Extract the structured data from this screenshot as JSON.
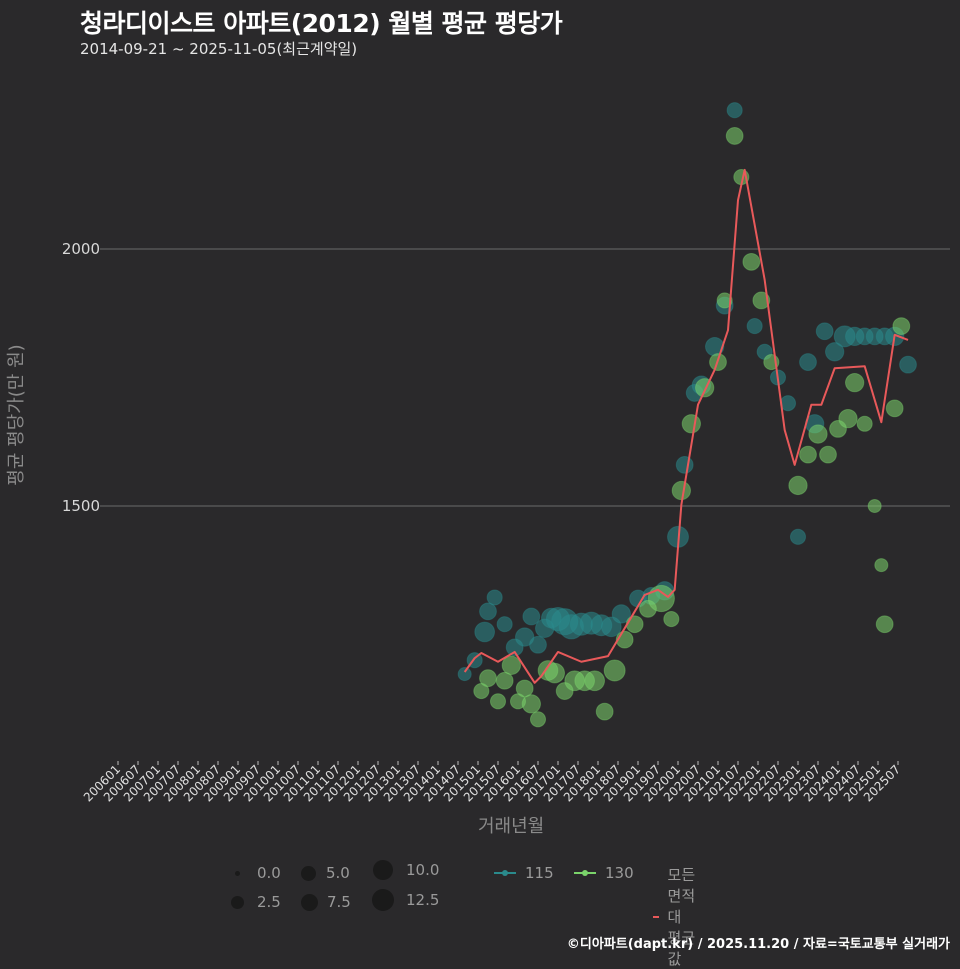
{
  "header": {
    "title": "청라디이스트 아파트(2012) 월별 평균 평당가",
    "subtitle": "2014-09-21 ~ 2025-11-05(최근계약일)"
  },
  "footer": {
    "credit": "©디아파트(dapt.kr) / 2025.11.20 / 자료=국토교통부 실거래가"
  },
  "colors": {
    "background": "#2a292b",
    "series_115": "#2a8a8c",
    "series_130": "#7bd46b",
    "average_line": "#e8595a",
    "gridline": "#6b6b6b"
  },
  "chart_data": {
    "type": "scatter",
    "title": "청라디이스트 아파트(2012) 월별 평균 평당가",
    "subtitle": "2014-09-21 ~ 2025-11-05(최근계약일)",
    "xlabel": "거래년월",
    "ylabel": "평균 평당가(만 원)",
    "y_ticks": [
      1500,
      2000
    ],
    "ylim": [
      1060,
      2330
    ],
    "grid": "horizontal major only",
    "x_ticks": [
      "200601",
      "200607",
      "200701",
      "200707",
      "200801",
      "200807",
      "200901",
      "200907",
      "201001",
      "201007",
      "201101",
      "201107",
      "201201",
      "201207",
      "201301",
      "201307",
      "201401",
      "201407",
      "201501",
      "201507",
      "201601",
      "201607",
      "201701",
      "201707",
      "201801",
      "201807",
      "201901",
      "201907",
      "202001",
      "202007",
      "202101",
      "202107",
      "202201",
      "202207",
      "202301",
      "202307",
      "202401",
      "202407",
      "202501",
      "202507"
    ],
    "legend": {
      "size_title": "",
      "size_values": [
        "0.0",
        "2.5",
        "5.0",
        "7.5",
        "10.0",
        "12.5"
      ],
      "series": [
        "115",
        "130",
        "모든 면적대 평균값"
      ],
      "position": "bottom"
    },
    "series": [
      {
        "name": "모든 면적대 평균값",
        "type": "line",
        "color": "#e8595a",
        "x": [
          "201409",
          "201412",
          "201502",
          "201507",
          "201512",
          "201606",
          "201608",
          "201701",
          "201708",
          "201804",
          "201903",
          "201907",
          "201910",
          "201912",
          "202002",
          "202007",
          "202012",
          "202104",
          "202107",
          "202109",
          "202203",
          "202209",
          "202212",
          "202305",
          "202308",
          "202312",
          "202409",
          "202502",
          "202506",
          "202510"
        ],
        "values": [
          1177,
          1204,
          1214,
          1197,
          1216,
          1156,
          1169,
          1216,
          1197,
          1208,
          1327,
          1337,
          1323,
          1337,
          1502,
          1697,
          1765,
          1842,
          2095,
          2154,
          1940,
          1648,
          1580,
          1697,
          1697,
          1768,
          1772,
          1663,
          1833,
          1823
        ]
      },
      {
        "name": "115",
        "type": "bubble",
        "color": "#2a8a8c",
        "points": [
          {
            "x": "201409",
            "y": 1173,
            "s": 2
          },
          {
            "x": "201412",
            "y": 1200,
            "s": 3
          },
          {
            "x": "201503",
            "y": 1255,
            "s": 6
          },
          {
            "x": "201504",
            "y": 1295,
            "s": 4
          },
          {
            "x": "201506",
            "y": 1322,
            "s": 3
          },
          {
            "x": "201509",
            "y": 1270,
            "s": 3
          },
          {
            "x": "201512",
            "y": 1225,
            "s": 4
          },
          {
            "x": "201603",
            "y": 1245,
            "s": 5
          },
          {
            "x": "201605",
            "y": 1285,
            "s": 4
          },
          {
            "x": "201607",
            "y": 1230,
            "s": 4
          },
          {
            "x": "201609",
            "y": 1262,
            "s": 5
          },
          {
            "x": "201611",
            "y": 1282,
            "s": 6
          },
          {
            "x": "201701",
            "y": 1280,
            "s": 9
          },
          {
            "x": "201703",
            "y": 1275,
            "s": 12
          },
          {
            "x": "201705",
            "y": 1265,
            "s": 10
          },
          {
            "x": "201708",
            "y": 1270,
            "s": 8
          },
          {
            "x": "201711",
            "y": 1272,
            "s": 8
          },
          {
            "x": "201802",
            "y": 1268,
            "s": 7
          },
          {
            "x": "201805",
            "y": 1265,
            "s": 6
          },
          {
            "x": "201808",
            "y": 1290,
            "s": 5
          },
          {
            "x": "201901",
            "y": 1320,
            "s": 4
          },
          {
            "x": "201905",
            "y": 1325,
            "s": 4
          },
          {
            "x": "201909",
            "y": 1335,
            "s": 5
          },
          {
            "x": "202001",
            "y": 1440,
            "s": 7
          },
          {
            "x": "202003",
            "y": 1580,
            "s": 4
          },
          {
            "x": "202006",
            "y": 1720,
            "s": 4
          },
          {
            "x": "202008",
            "y": 1735,
            "s": 5
          },
          {
            "x": "202012",
            "y": 1810,
            "s": 5
          },
          {
            "x": "202103",
            "y": 1890,
            "s": 4
          },
          {
            "x": "202106",
            "y": 2270,
            "s": 3
          },
          {
            "x": "202112",
            "y": 1850,
            "s": 3
          },
          {
            "x": "202203",
            "y": 1800,
            "s": 3
          },
          {
            "x": "202207",
            "y": 1750,
            "s": 3
          },
          {
            "x": "202210",
            "y": 1700,
            "s": 3
          },
          {
            "x": "202301",
            "y": 1440,
            "s": 3
          },
          {
            "x": "202304",
            "y": 1780,
            "s": 4
          },
          {
            "x": "202306",
            "y": 1660,
            "s": 5
          },
          {
            "x": "202309",
            "y": 1840,
            "s": 4
          },
          {
            "x": "202312",
            "y": 1800,
            "s": 5
          },
          {
            "x": "202403",
            "y": 1830,
            "s": 7
          },
          {
            "x": "202406",
            "y": 1830,
            "s": 5
          },
          {
            "x": "202409",
            "y": 1830,
            "s": 4
          },
          {
            "x": "202412",
            "y": 1830,
            "s": 4
          },
          {
            "x": "202503",
            "y": 1830,
            "s": 4
          },
          {
            "x": "202506",
            "y": 1830,
            "s": 5
          },
          {
            "x": "202510",
            "y": 1775,
            "s": 4
          }
        ]
      },
      {
        "name": "130",
        "type": "bubble",
        "color": "#7bd46b",
        "points": [
          {
            "x": "201502",
            "y": 1140,
            "s": 3
          },
          {
            "x": "201504",
            "y": 1165,
            "s": 4
          },
          {
            "x": "201507",
            "y": 1120,
            "s": 3
          },
          {
            "x": "201509",
            "y": 1160,
            "s": 4
          },
          {
            "x": "201511",
            "y": 1190,
            "s": 5
          },
          {
            "x": "201601",
            "y": 1120,
            "s": 3
          },
          {
            "x": "201603",
            "y": 1145,
            "s": 4
          },
          {
            "x": "201605",
            "y": 1115,
            "s": 5
          },
          {
            "x": "201607",
            "y": 1085,
            "s": 3
          },
          {
            "x": "201610",
            "y": 1180,
            "s": 6
          },
          {
            "x": "201612",
            "y": 1175,
            "s": 6
          },
          {
            "x": "201703",
            "y": 1140,
            "s": 4
          },
          {
            "x": "201706",
            "y": 1160,
            "s": 6
          },
          {
            "x": "201709",
            "y": 1160,
            "s": 6
          },
          {
            "x": "201712",
            "y": 1160,
            "s": 6
          },
          {
            "x": "201803",
            "y": 1100,
            "s": 4
          },
          {
            "x": "201806",
            "y": 1180,
            "s": 7
          },
          {
            "x": "201809",
            "y": 1240,
            "s": 4
          },
          {
            "x": "201812",
            "y": 1270,
            "s": 4
          },
          {
            "x": "201904",
            "y": 1300,
            "s": 4
          },
          {
            "x": "201908",
            "y": 1320,
            "s": 12
          },
          {
            "x": "201911",
            "y": 1280,
            "s": 3
          },
          {
            "x": "202002",
            "y": 1530,
            "s": 5
          },
          {
            "x": "202005",
            "y": 1660,
            "s": 5
          },
          {
            "x": "202009",
            "y": 1730,
            "s": 5
          },
          {
            "x": "202101",
            "y": 1780,
            "s": 4
          },
          {
            "x": "202103",
            "y": 1900,
            "s": 3
          },
          {
            "x": "202106",
            "y": 2220,
            "s": 4
          },
          {
            "x": "202108",
            "y": 2140,
            "s": 3
          },
          {
            "x": "202111",
            "y": 1975,
            "s": 4
          },
          {
            "x": "202202",
            "y": 1900,
            "s": 4
          },
          {
            "x": "202205",
            "y": 1780,
            "s": 3
          },
          {
            "x": "202301",
            "y": 1540,
            "s": 5
          },
          {
            "x": "202304",
            "y": 1600,
            "s": 4
          },
          {
            "x": "202307",
            "y": 1640,
            "s": 5
          },
          {
            "x": "202310",
            "y": 1600,
            "s": 4
          },
          {
            "x": "202401",
            "y": 1650,
            "s": 4
          },
          {
            "x": "202404",
            "y": 1670,
            "s": 5
          },
          {
            "x": "202406",
            "y": 1740,
            "s": 5
          },
          {
            "x": "202409",
            "y": 1660,
            "s": 3
          },
          {
            "x": "202412",
            "y": 1500,
            "s": 2
          },
          {
            "x": "202502",
            "y": 1385,
            "s": 2
          },
          {
            "x": "202503",
            "y": 1270,
            "s": 4
          },
          {
            "x": "202506",
            "y": 1690,
            "s": 4
          },
          {
            "x": "202508",
            "y": 1850,
            "s": 4
          }
        ]
      }
    ]
  },
  "axes": {
    "y_tick_labels": [
      "2000",
      "1500"
    ],
    "xlabel": "거래년월",
    "ylabel": "평균 평당가(만 원)"
  },
  "legend": {
    "sizes": [
      {
        "label": "0.0"
      },
      {
        "label": "2.5"
      },
      {
        "label": "5.0"
      },
      {
        "label": "7.5"
      },
      {
        "label": "10.0"
      },
      {
        "label": "12.5"
      }
    ],
    "series": [
      {
        "label": "115"
      },
      {
        "label": "130"
      },
      {
        "label": "모든 면적대 평균값"
      }
    ]
  }
}
